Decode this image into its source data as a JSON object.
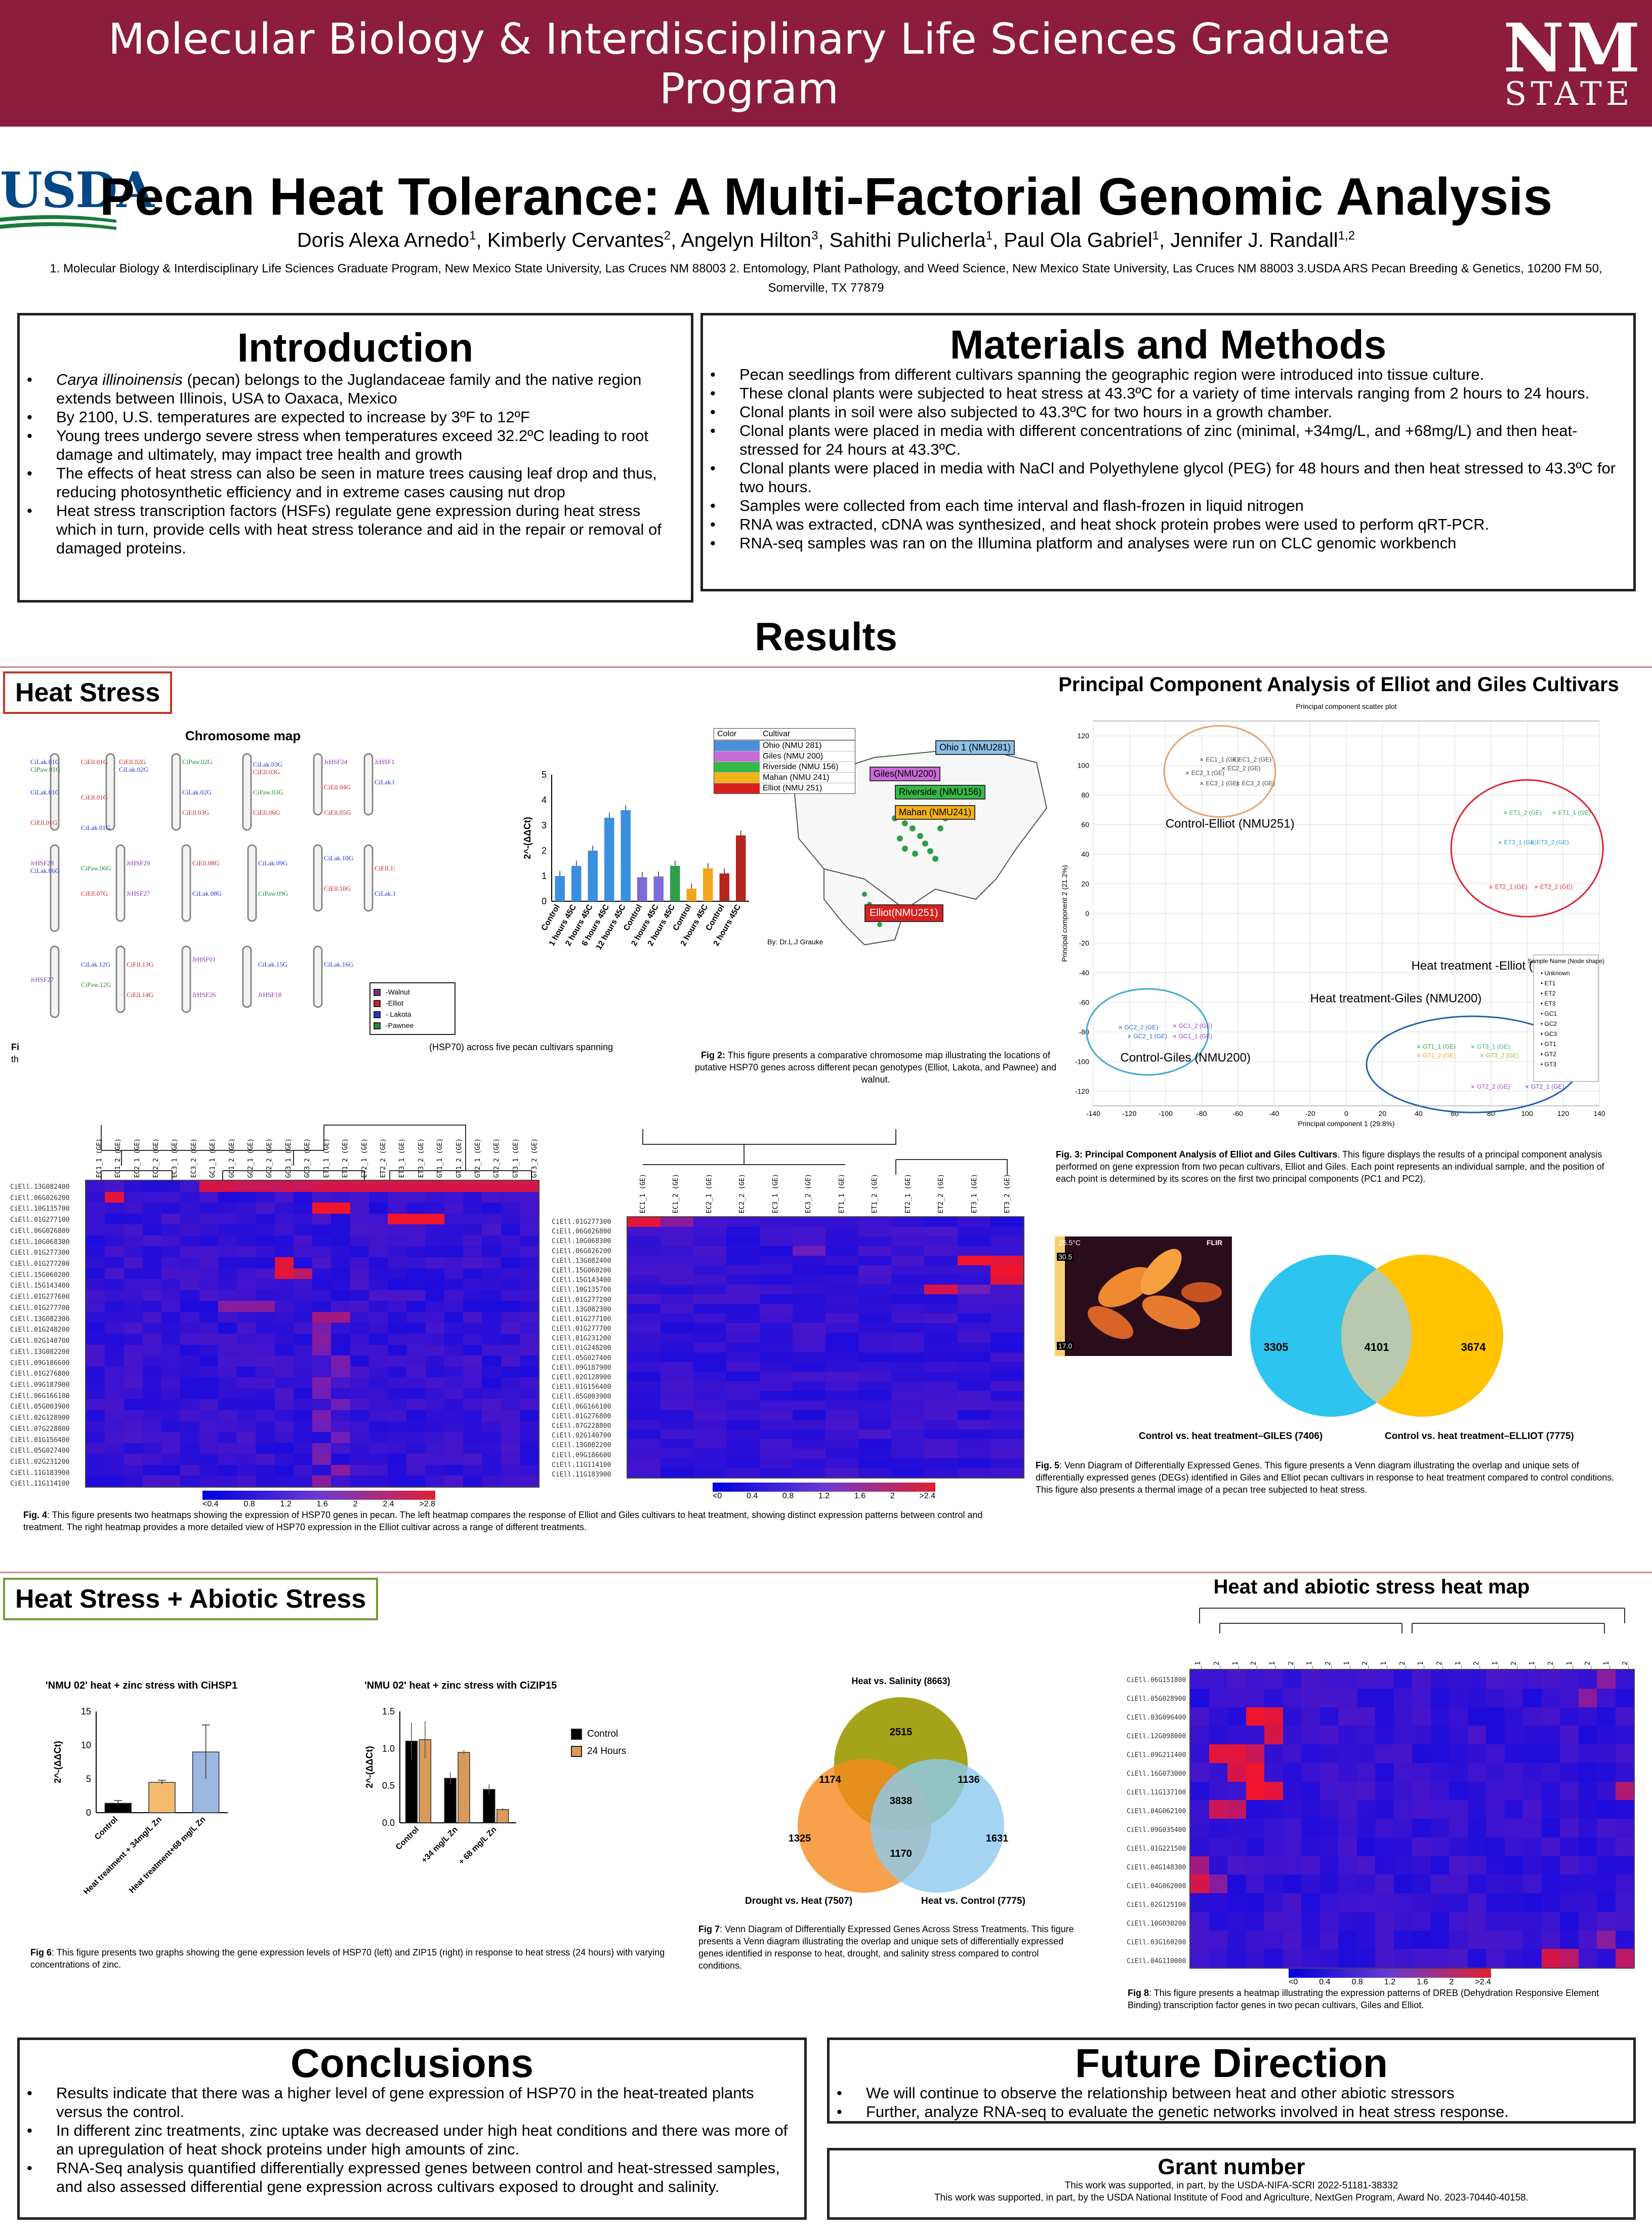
{
  "header": {
    "program": "Molecular Biology & Interdisciplinary Life Sciences Graduate Program",
    "logo_nm": "NM",
    "logo_state": "STATE",
    "logo_usda": "USDA"
  },
  "title": "Pecan Heat Tolerance: A Multi-Factorial Genomic Analysis",
  "authors": [
    {
      "name": "Doris Alexa Arnedo",
      "aff": "1"
    },
    {
      "name": "Kimberly Cervantes",
      "aff": "2"
    },
    {
      "name": "Angelyn Hilton",
      "aff": "3"
    },
    {
      "name": "Sahithi Pulicherla",
      "aff": "1"
    },
    {
      "name": "Paul Ola Gabriel",
      "aff": "1"
    },
    {
      "name": "Jennifer J. Randall",
      "aff": "1,2"
    }
  ],
  "affiliations": "1. Molecular Biology & Interdisciplinary Life Sciences Graduate Program, New Mexico State University, Las Cruces NM 88003 2. Entomology, Plant Pathology, and Weed Science, New Mexico State University, Las Cruces NM 88003 3.USDA ARS Pecan Breeding & Genetics, 10200 FM 50, Somerville, TX 77879",
  "introduction": {
    "heading": "Introduction",
    "bullets": [
      "Carya illinoinensis (pecan) belongs to the Juglandaceae family and the native region extends between Illinois, USA to Oaxaca, Mexico",
      "By 2100, U.S. temperatures are expected to increase by 3ºF to 12ºF",
      "Young trees undergo severe stress when temperatures exceed 32.2ºC leading to root damage and ultimately, may impact tree health and growth",
      "The effects of heat stress can also be seen in mature trees causing leaf drop and thus, reducing photosynthetic efficiency and in extreme cases causing nut drop",
      "Heat stress transcription factors (HSFs) regulate gene expression during heat stress which in turn, provide cells with heat stress tolerance and aid in the repair or removal of damaged proteins."
    ]
  },
  "methods": {
    "heading": "Materials and Methods",
    "bullets": [
      "Pecan seedlings from different cultivars spanning the geographic region were introduced into tissue culture.",
      "These clonal plants were subjected to heat stress at 43.3ºC for a variety of time intervals ranging from 2 hours to 24 hours.",
      "Clonal plants in soil were also subjected to 43.3ºC for two hours in a growth chamber.",
      "Clonal plants were placed in media with different concentrations of zinc (minimal, +34mg/L, and +68mg/L) and then heat-stressed for 24 hours at 43.3ºC.",
      "Clonal plants were placed in media with NaCl and Polyethylene glycol (PEG) for 48 hours and then heat stressed to 43.3ºC for two hours.",
      "Samples were collected from each time interval and flash-frozen in liquid nitrogen",
      "RNA was extracted, cDNA was synthesized, and heat shock protein probes were used to perform qRT-PCR.",
      "RNA-seq samples was ran on the Illumina platform and analyses were run on CLC genomic workbench"
    ]
  },
  "results": {
    "heading": "Results",
    "heat_stress_label": "Heat Stress",
    "heat_abiotic_label": "Heat Stress + Abiotic Stress",
    "chromosome_map_title": "Chromosome map",
    "chromosome_legend": [
      "-Walnut",
      "-Elliot",
      "- Lakota",
      "-Pawnee"
    ],
    "fig1_fragment": "(HSP70) across five pecan cultivars spanning",
    "fig1_prefix": "Fi",
    "fig1_prefix2": "th",
    "fig2_caption_bold": "Fig 2:",
    "fig2_caption": "This figure presents a comparative chromosome map illustrating the locations of putative HSP70 genes across different pecan genotypes (Elliot, Lakota, and Pawnee) and walnut.",
    "map_legend_header": [
      "Color",
      "Cultivar"
    ],
    "map_legend_rows": [
      {
        "name": "Ohio (NMU 281)",
        "color": "#4a90d9"
      },
      {
        "name": "Giles (NMU 200)",
        "color": "#c86ad8"
      },
      {
        "name": "Riverside (NMU 156)",
        "color": "#35b84a"
      },
      {
        "name": "Mahan (NMU 241)",
        "color": "#f2b21a"
      },
      {
        "name": "Elliot (NMU 251)",
        "color": "#d92020"
      }
    ],
    "map_tags": [
      "Ohio 1 (NMU281)",
      "Giles(NMU200)",
      "Riverside (NMU156)",
      "Mahan (NMU241)",
      "Elliot(NMU251)"
    ],
    "map_credit": "By: Dr.L.J Grauke",
    "pca_title": "Principal Component Analysis of Elliot and Giles Cultivars",
    "pca_subtitle": "Principal component scatter plot",
    "pca_xlabel": "Principal component 1 (29.8%)",
    "pca_ylabel": "Principal component 2 (21.2%)",
    "pca_groups": [
      "Control-Elliot (NMU251)",
      "Heat treatment -Elliot (NMU251)",
      "Control-Giles (NMU200)",
      "Heat treatment-Giles (NMU200)"
    ],
    "pca_legend_title": "Sample Name (Node shape)",
    "pca_legend": [
      "Unknown",
      "ET1",
      "ET2",
      "ET3",
      "GC1",
      "GC2",
      "GC3",
      "GT1",
      "GT2",
      "GT3"
    ],
    "fig3_caption_bold": "Fig. 3: Principal Component Analysis of Elliot and Giles Cultivars",
    "fig3_caption": ". This figure displays the results of a principal component analysis performed on gene expression from two pecan cultivars, Elliot and Giles. Each point represents an individual sample, and the position of each point is determined by its scores on the first two principal components (PC1 and PC2).",
    "fig4_caption_bold": "Fig. 4",
    "fig4_caption": ": This figure presents two heatmaps showing the expression of HSP70 genes in pecan. The left heatmap compares the response of Elliot and Giles cultivars to heat treatment, showing distinct expression patterns between control and treatment. The right heatmap provides a more detailed view of HSP70 expression in the Elliot cultivar across a range of different treatments.",
    "thermal_labels": [
      "25.5°C",
      "30.5",
      "17.0",
      "FLIR"
    ],
    "venn1": {
      "left": "3305",
      "center": "4101",
      "right": "3674",
      "label_left": "Control vs. heat treatment–GILES (7406)",
      "label_right": "Control vs. heat treatment–ELLIOT (7775)"
    },
    "fig5_caption_bold": "Fig. 5",
    "fig5_caption": ": Venn Diagram of Differentially Expressed Genes. This figure presents a Venn diagram illustrating the overlap and unique sets of differentially expressed genes (DEGs) identified in Giles and Elliot pecan cultivars in response to heat treatment compared to control conditions. This figure also presents a thermal image of a pecan tree subjected to heat stress.",
    "zinc_hsp_title": "'NMU 02' heat + zinc stress with CiHSP1",
    "zinc_zip_title": "'NMU 02' heat + zinc stress with CiZIP15",
    "zinc_ylabel": "2^-(ΔΔCt)",
    "zinc_legend": [
      "Control",
      "24 Hours"
    ],
    "fig6_caption_bold": "Fig 6",
    "fig6_caption": ": This figure presents two graphs showing the gene expression levels of HSP70 (left) and ZIP15 (right) in response to heat stress (24 hours) with varying concentrations of zinc.",
    "venn3": {
      "top_label": "Heat vs. Salinity (8663)",
      "left_label": "Drought vs. Heat (7507)",
      "right_label": "Heat vs. Control (7775)",
      "top": "2515",
      "left": "1325",
      "right": "1631",
      "tl": "1174",
      "tr": "1136",
      "bottom": "1170",
      "center": "3838"
    },
    "fig7_caption_bold": "Fig 7",
    "fig7_caption": ": Venn Diagram of Differentially Expressed Genes Across Stress Treatments. This figure presents a Venn diagram illustrating the overlap and unique sets of differentially expressed genes identified in response to heat, drought, and salinity stress compared to control conditions.",
    "abiotic_heatmap_title": "Heat and abiotic stress heat map",
    "fig8_caption_bold": "Fig 8",
    "fig8_caption": ": This figure presents a heatmap illustrating the expression patterns of DREB (Dehydration Responsive Element Binding) transcription factor genes in two pecan cultivars, Giles and Elliot."
  },
  "heatmap_scale": {
    "left": [
      "<0.4",
      "0.8",
      "1.2",
      "1.6",
      "2",
      "2.4",
      ">2.8"
    ],
    "right": [
      "<0",
      "0.4",
      "0.8",
      "1.2",
      "1.6",
      "2",
      ">2.4"
    ],
    "dreb": [
      "<0",
      "0.4",
      "0.8",
      "1.2",
      "1.6",
      "2",
      ">2.4"
    ]
  },
  "gene_lists": {
    "left": [
      "CiEll.13G082400",
      "CiEll.06G026200",
      "CiEll.10G135700",
      "CiEll.01G277100",
      "CiEll.06G026800",
      "CiEll.10G068300",
      "CiEll.01G277300",
      "CiEll.01G277200",
      "CiEll.15G060200",
      "CiEll.15G143400",
      "CiEll.01G277600",
      "CiEll.01G277700",
      "CiEll.13G082300",
      "CiEll.01G248200",
      "CiEll.02G140700",
      "CiEll.13G082200",
      "CiEll.09G186600",
      "CiEll.01G276800",
      "CiEll.09G187900",
      "CiEll.06G166100",
      "CiEll.05G003900",
      "CiEll.02G128900",
      "CiEll.07G228800",
      "CiEll.01G156400",
      "CiEll.05G027400",
      "CiEll.02G231200",
      "CiEll.11G183900",
      "CiEll.11G114100"
    ],
    "right": [
      "CiEll.01G277300",
      "CiEll.06G026800",
      "CiEll.10G068300",
      "CiEll.06G026200",
      "CiEll.13G082400",
      "CiEll.15G060200",
      "CiEll.15G143400",
      "CiEll.10G135700",
      "CiEll.01G277200",
      "CiEll.13G082300",
      "CiEll.01G277100",
      "CiEll.01G277700",
      "CiEll.01G231200",
      "CiEll.01G248200",
      "CiEll.05G027400",
      "CiEll.09G187900",
      "CiEll.02G128900",
      "CiEll.01G156400",
      "CiEll.05G003900",
      "CiEll.06G166100",
      "CiEll.01G276800",
      "CiEll.07G228800",
      "CiEll.02G140700",
      "CiEll.13G082200",
      "CiEll.09G186600",
      "CiEll.11G114100",
      "CiEll.11G183900"
    ],
    "dreb": [
      "CiEll.06G151800",
      "CiEll.05G028900",
      "CiEll.03G096400",
      "CiEll.12G098000",
      "CiEll.09G211400",
      "CiEll.16G073000",
      "CiEll.11G137100",
      "CiEll.04G062100",
      "CiEll.09G035400",
      "CiEll.01G221500",
      "CiEll.04G148300",
      "CiEll.04G062000",
      "CiEll.02G125100",
      "CiEll.10G030200",
      "CiEll.03G160200",
      "CiEll.04G110000"
    ]
  },
  "sample_lists": {
    "left": [
      "EC1_1 (GE)",
      "EC1_2 (GE)",
      "EC2_1 (GE)",
      "EC2_2 (GE)",
      "EC3_1 (GE)",
      "EC3_2 (GE)",
      "GC1_1 (GE)",
      "GC1_2 (GE)",
      "GC2_1 (GE)",
      "GC2_2 (GE)",
      "GC3_1 (GE)",
      "GC3_2 (GE)",
      "ET1_1 (GE)",
      "ET1_2 (GE)",
      "ET2_1 (GE)",
      "ET2_2 (GE)",
      "ET3_1 (GE)",
      "ET3_2 (GE)",
      "GT1_1 (GE)",
      "GT1_2 (GE)",
      "GT2_1 (GE)",
      "GT2_2 (GE)",
      "GT3_1 (GE)",
      "GT3_2 (GE)"
    ],
    "right": [
      "EC1_1 (GE)",
      "EC1_2 (GE)",
      "EC2_1 (GE)",
      "EC2_2 (GE)",
      "EC3_1 (GE)",
      "EC3_2 (GE)",
      "ET1_1 (GE)",
      "ET1_2 (GE)",
      "ET2_1 (GE)",
      "ET2_2 (GE)",
      "ET3_1 (GE)",
      "ET3_2 (GE)"
    ],
    "dreb": [
      "GT1_1",
      "GT1_2",
      "ET1_1",
      "ET1_2",
      "ET2_1",
      "ET2_2",
      "ET3_1",
      "ET3_2",
      "GC1_1",
      "GC1_2",
      "GC2_1",
      "GC2_2",
      "GC3_1",
      "GC3_2",
      "EC1_1",
      "EC1_2",
      "EC2_1",
      "EC2_2",
      "EC3_1",
      "EC3_2",
      "GT2_1",
      "GT2_2",
      "GT3_1",
      "GT3_2"
    ]
  },
  "chart_data": [
    {
      "type": "bar",
      "categories": [
        "Control",
        "1 hours 45C",
        "2 hours 45C",
        "6 hours 45C",
        "12 hours 45C",
        "Control",
        "2 hours 45C",
        "2 hours 45C",
        "Control",
        "2 hours 45C",
        "Control",
        "2 hours 45C"
      ],
      "values": [
        1.0,
        1.4,
        2.0,
        3.3,
        3.6,
        0.95,
        0.98,
        1.4,
        0.5,
        1.3,
        1.1,
        2.6
      ],
      "colors": [
        "#3b8fe0",
        "#3b8fe0",
        "#3b8fe0",
        "#3b8fe0",
        "#3b8fe0",
        "#7e6ad8",
        "#7e6ad8",
        "#2f9e4a",
        "#f0a51a",
        "#f0a51a",
        "#b3261e",
        "#b3261e"
      ],
      "ylabel": "2^-(ΔΔCt)",
      "yticks": [
        "0",
        "1",
        "2",
        "3",
        "4",
        "5"
      ],
      "ylim": [
        0,
        5
      ]
    },
    {
      "type": "bar",
      "title": "'NMU 02' heat + zinc stress with CiHSP1",
      "categories": [
        "Control",
        "Heat treatment + 34mg/L Zn",
        "Heat treatment+68 mg/L Zn"
      ],
      "values": [
        1.4,
        4.5,
        9.0
      ],
      "errors": [
        0.4,
        0.3,
        4.0
      ],
      "colors": [
        "#000000",
        "#f3bb72",
        "#9bb8e0"
      ],
      "ylabel": "2^-(ΔΔCt)",
      "yticks": [
        "0",
        "5",
        "10",
        "15"
      ],
      "ylim": [
        0,
        15
      ]
    },
    {
      "type": "bar",
      "title": "'NMU 02' heat + zinc stress with CiZIP15",
      "categories": [
        "Control",
        "+34 mg/L Zn",
        "+ 68 mg/L Zn"
      ],
      "series": [
        {
          "name": "Control",
          "values": [
            1.1,
            0.6,
            0.45
          ]
        },
        {
          "name": "24 Hours",
          "values": [
            1.12,
            0.95,
            0.18
          ]
        }
      ],
      "errors": [
        [
          0.25,
          0.08,
          0.07
        ],
        [
          0.25,
          0.03,
          0.02
        ]
      ],
      "ylabel": "2^-(ΔΔCt)",
      "yticks": [
        "0.0",
        "0.5",
        "1.0",
        "1.5"
      ],
      "ylim": [
        0,
        1.5
      ]
    },
    {
      "type": "scatter",
      "title": "Principal component scatter plot",
      "xlabel": "Principal component 1 (29.8%)",
      "ylabel": "Principal component 2 (21.2%)",
      "xlim": [
        -140,
        140
      ],
      "ylim": [
        -130,
        130
      ],
      "xticks": [
        "-140",
        "-120",
        "-100",
        "-80",
        "-60",
        "-40",
        "-20",
        "0",
        "20",
        "40",
        "60",
        "80",
        "100",
        "120",
        "140"
      ],
      "yticks": [
        "120",
        "100",
        "80",
        "60",
        "40",
        "20",
        "0",
        "-20",
        "-40",
        "-60",
        "-80",
        "-100",
        "-120"
      ],
      "points": [
        {
          "label": "EC1_1 (GE)",
          "x": -80,
          "y": 104,
          "color": "#444444"
        },
        {
          "label": "EC1_2 (GE)",
          "x": -62,
          "y": 104,
          "color": "#444444"
        },
        {
          "label": "EC2_1 (GE)",
          "x": -88,
          "y": 95,
          "color": "#444444"
        },
        {
          "label": "EC2_2 (GE)",
          "x": -68,
          "y": 98,
          "color": "#444444"
        },
        {
          "label": "EC3_1 (GE)",
          "x": -80,
          "y": 88,
          "color": "#444444"
        },
        {
          "label": "EC3_2 (GE)",
          "x": -60,
          "y": 88,
          "color": "#444444"
        },
        {
          "label": "ET1_2 (GE)",
          "x": 88,
          "y": 68,
          "color": "#30b060"
        },
        {
          "label": "ET1_1 (GE)",
          "x": 115,
          "y": 68,
          "color": "#30b060"
        },
        {
          "label": "ET3_1 (GE)",
          "x": 85,
          "y": 48,
          "color": "#2aa0c8"
        },
        {
          "label": "ET3_2 (GE)",
          "x": 103,
          "y": 48,
          "color": "#2aa0c8"
        },
        {
          "label": "ET2_1 (GE)",
          "x": 80,
          "y": 18,
          "color": "#d9304a"
        },
        {
          "label": "ET2_2 (GE)",
          "x": 105,
          "y": 18,
          "color": "#d9304a"
        },
        {
          "label": "GC2_2 (GE)",
          "x": -125,
          "y": -77,
          "color": "#2a6ad0"
        },
        {
          "label": "GC2_1 (GE)",
          "x": -120,
          "y": -83,
          "color": "#2a6ad0"
        },
        {
          "label": "GC1_2 (GE)",
          "x": -95,
          "y": -76,
          "color": "#a040c0"
        },
        {
          "label": "GC1_1 (GE)",
          "x": -95,
          "y": -83,
          "color": "#a040c0"
        },
        {
          "label": "GT1_1 (GE)",
          "x": 40,
          "y": -90,
          "color": "#30a040"
        },
        {
          "label": "GT1_2 (GE)",
          "x": 40,
          "y": -96,
          "color": "#f0a020"
        },
        {
          "label": "GT3_1 (GE)",
          "x": 70,
          "y": -90,
          "color": "#30b080"
        },
        {
          "label": "GT3_2 (GE)",
          "x": 75,
          "y": -96,
          "color": "#90c030"
        },
        {
          "label": "GT2_2 (GE)",
          "x": 70,
          "y": -117,
          "color": "#b040c0"
        },
        {
          "label": "GT2_1 (GE)",
          "x": 100,
          "y": -117,
          "color": "#7040c0"
        }
      ]
    }
  ],
  "conclusions": {
    "heading": "Conclusions",
    "bullets": [
      "Results indicate that there was a higher level of gene expression of HSP70 in the heat-treated plants versus the control.",
      "In different zinc treatments, zinc uptake was decreased under high heat conditions and there was more of an upregulation of heat shock proteins under high amounts of zinc.",
      "RNA-Seq analysis quantified differentially expressed genes between control and heat-stressed samples, and also assessed differential gene expression across cultivars exposed to drought and salinity."
    ]
  },
  "future": {
    "heading": "Future Direction",
    "bullets": [
      "We will continue to observe the relationship between heat and other abiotic stressors",
      "Further, analyze RNA-seq to evaluate the genetic networks involved in heat stress response."
    ]
  },
  "grant": {
    "heading": "Grant number",
    "line1": "This work was supported, in part, by the USDA-NIFA-SCRI 2022-51181-38332",
    "line2": "This work was supported, in part, by the USDA National Institute of Food and Agriculture, NextGen Program, Award No. 2023-70440-40158."
  },
  "colors": {
    "banner": "#8c1d3c",
    "heat_label_border": "#c0392b",
    "abiotic_label_border": "#7a9a3a"
  }
}
